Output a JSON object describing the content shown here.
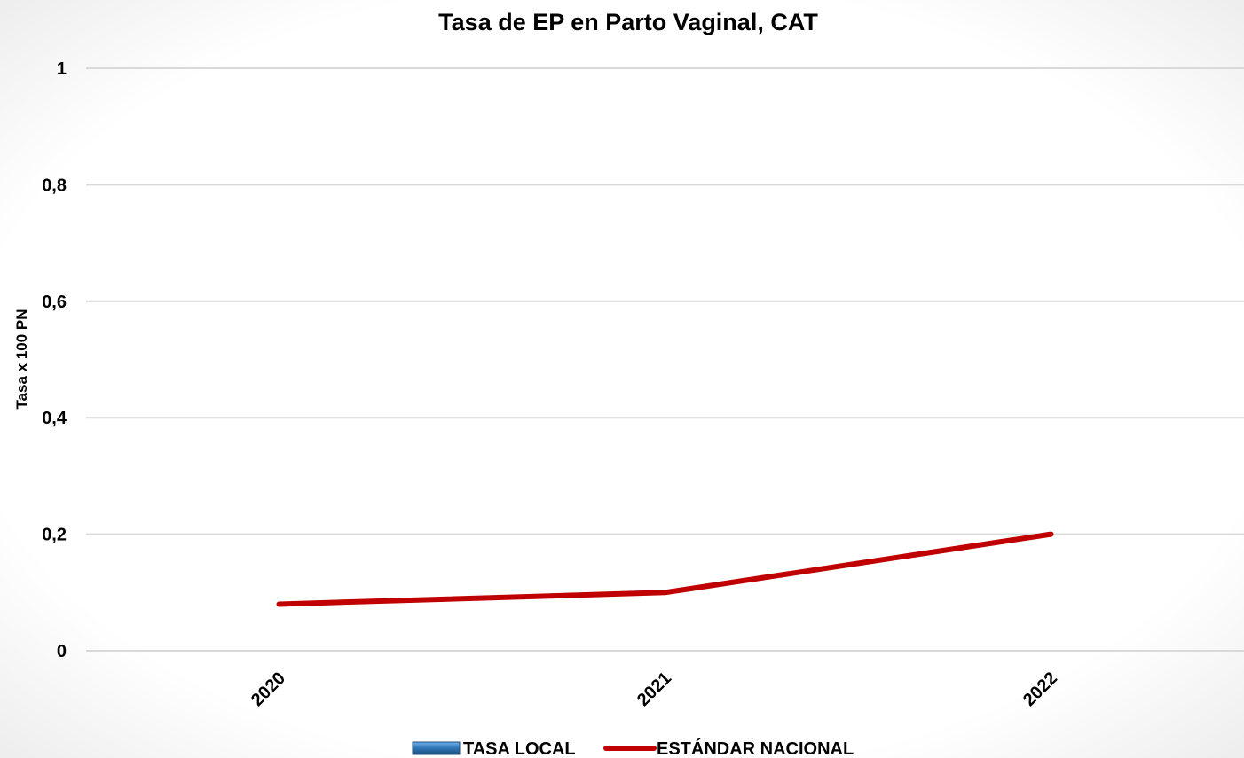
{
  "chart_data": {
    "type": "line",
    "title": "Tasa de EP en Parto Vaginal, CAT",
    "xlabel": "",
    "ylabel": "Tasa x 100 PN",
    "categories": [
      "2020",
      "2021",
      "2022"
    ],
    "ylim": [
      0,
      1
    ],
    "yticks": [
      0,
      0.2,
      0.4,
      0.6,
      0.8,
      1
    ],
    "ytick_labels": [
      "0",
      "0,2",
      "0,4",
      "0,6",
      "0,8",
      "1"
    ],
    "grid": true,
    "legend_position": "bottom",
    "series": [
      {
        "name": "TASA LOCAL",
        "type": "bar",
        "values": [
          0,
          0,
          0
        ],
        "color": "#2e75b6"
      },
      {
        "name": "ESTÁNDAR NACIONAL",
        "type": "line",
        "values": [
          0.08,
          0.1,
          0.2
        ],
        "color": "#c00000"
      }
    ]
  }
}
